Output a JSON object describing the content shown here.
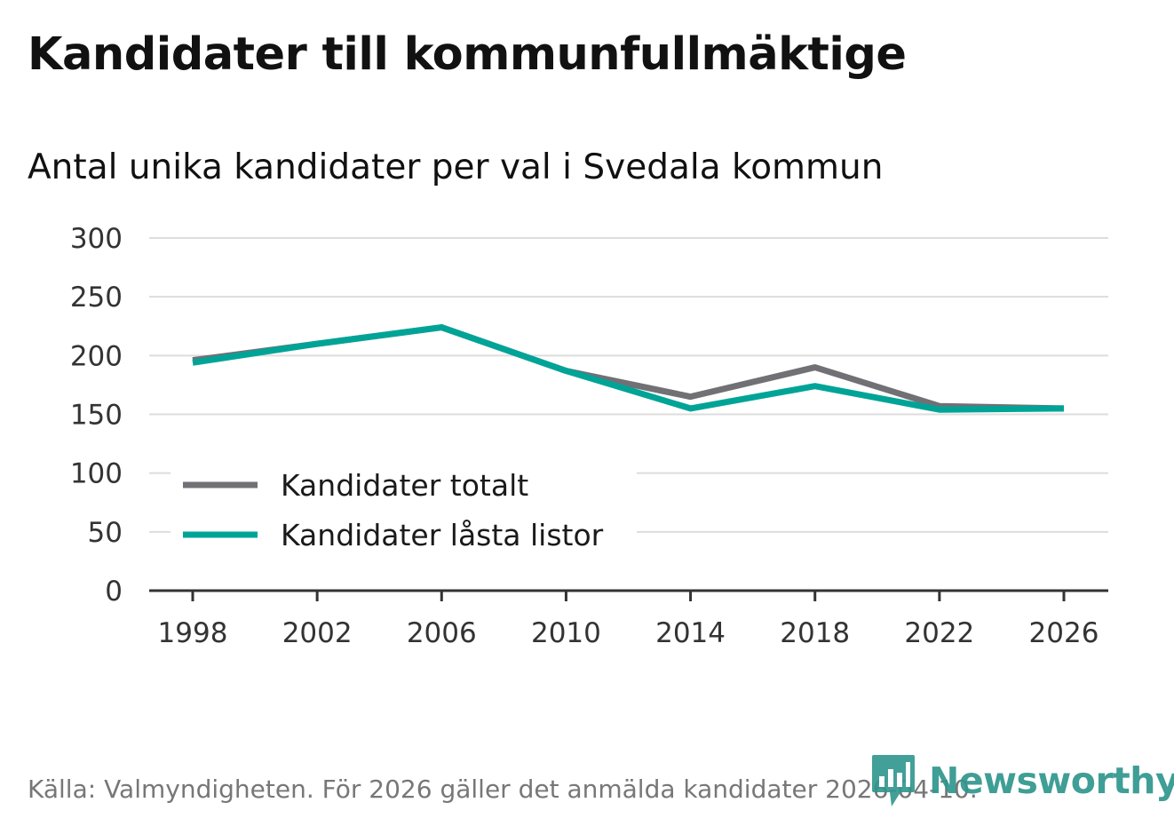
{
  "chart_data": {
    "type": "line",
    "title": "Kandidater till kommunfullmäktige",
    "subtitle": "Antal unika kandidater per val i Svedala kommun",
    "xlabel": "",
    "ylabel": "",
    "x": [
      1998,
      2002,
      2006,
      2010,
      2014,
      2018,
      2022,
      2026
    ],
    "x_tick_labels": [
      "1998",
      "2002",
      "2006",
      "2010",
      "2014",
      "2018",
      "2022",
      "2026"
    ],
    "y_ticks": [
      0,
      50,
      100,
      150,
      200,
      250,
      300
    ],
    "y_tick_labels": [
      "0",
      "50",
      "100",
      "150",
      "200",
      "250",
      "300"
    ],
    "ylim": [
      0,
      300
    ],
    "grid": true,
    "legend_position": "bottom-left",
    "series": [
      {
        "name": "Kandidater totalt",
        "color": "#717075",
        "values": [
          196,
          210,
          224,
          187,
          165,
          190,
          157,
          155
        ]
      },
      {
        "name": "Kandidater låsta listor",
        "color": "#00a497",
        "values": [
          194,
          210,
          224,
          187,
          155,
          174,
          154,
          155
        ]
      }
    ]
  },
  "footer": {
    "source": "Källa: Valmyndigheten. För 2026 gäller det anmälda kandidater 2026-04-10.",
    "brand": "Newsworthy"
  },
  "colors": {
    "grid": "#dddddd",
    "axis": "#333333",
    "brand": "#2f968d"
  }
}
